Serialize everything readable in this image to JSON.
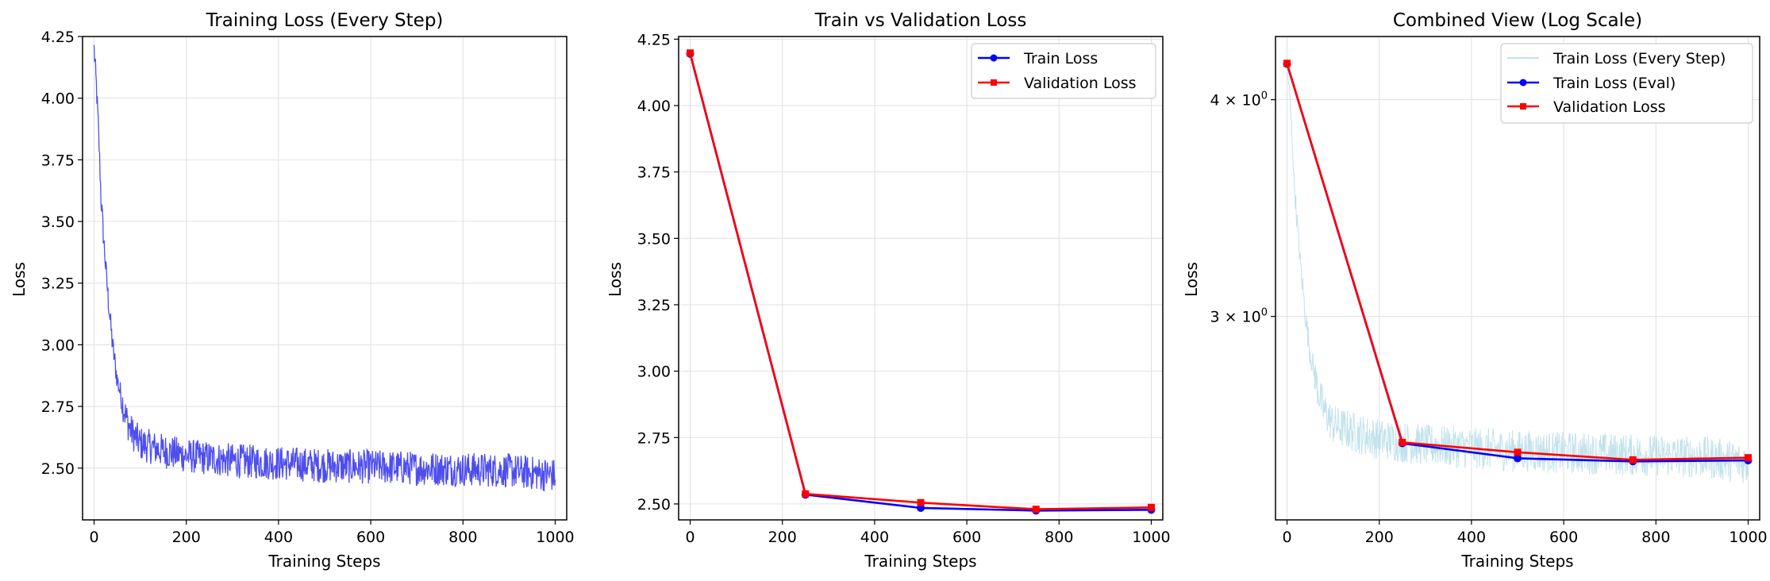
{
  "colors": {
    "step_line": "#4444ee",
    "step_line_light": "#add8e6",
    "train_eval": "#0000ff",
    "validation": "#ff0000",
    "grid": "#e0e0e0"
  },
  "chart_data": [
    {
      "type": "line",
      "title": "Training Loss (Every Step)",
      "xlabel": "Training Steps",
      "ylabel": "Loss",
      "xlim": [
        -25,
        1025
      ],
      "ylim": [
        2.29,
        4.25
      ],
      "xticks": [
        0,
        200,
        400,
        600,
        800,
        1000
      ],
      "yticks": [
        2.5,
        2.75,
        3.0,
        3.25,
        3.5,
        3.75,
        4.0,
        4.25
      ],
      "xtick_labels": [
        "0",
        "200",
        "400",
        "600",
        "800",
        "1000"
      ],
      "ytick_labels": [
        "2.50",
        "2.75",
        "3.00",
        "3.25",
        "3.50",
        "3.75",
        "4.00",
        "4.25"
      ],
      "grid": true,
      "series": [
        {
          "style": "noisy-step",
          "x": [
            0,
            5,
            10,
            15,
            20,
            25,
            30,
            35,
            40,
            45,
            50,
            60,
            70,
            80,
            100,
            150,
            200,
            300,
            400,
            500,
            600,
            700,
            800,
            900,
            1000
          ],
          "values": [
            4.2,
            4.05,
            3.85,
            3.6,
            3.45,
            3.32,
            3.2,
            3.1,
            3.0,
            2.93,
            2.86,
            2.78,
            2.7,
            2.65,
            2.6,
            2.57,
            2.55,
            2.53,
            2.52,
            2.51,
            2.505,
            2.5,
            2.495,
            2.49,
            2.47
          ]
        }
      ]
    },
    {
      "type": "line",
      "title": "Train vs Validation Loss",
      "xlabel": "Training Steps",
      "ylabel": "Loss",
      "xlim": [
        -25,
        1025
      ],
      "ylim": [
        2.44,
        4.26
      ],
      "xticks": [
        0,
        200,
        400,
        600,
        800,
        1000
      ],
      "yticks": [
        2.5,
        2.75,
        3.0,
        3.25,
        3.5,
        3.75,
        4.0,
        4.25
      ],
      "xtick_labels": [
        "0",
        "200",
        "400",
        "600",
        "800",
        "1000"
      ],
      "ytick_labels": [
        "2.50",
        "2.75",
        "3.00",
        "3.25",
        "3.50",
        "3.75",
        "4.00",
        "4.25"
      ],
      "grid": true,
      "legend": "top-right",
      "series": [
        {
          "name": "Train Loss",
          "marker": "circle",
          "x": [
            0,
            250,
            500,
            750,
            1000
          ],
          "values": [
            4.195,
            2.535,
            2.485,
            2.475,
            2.478
          ]
        },
        {
          "name": "Validation Loss",
          "marker": "square",
          "x": [
            0,
            250,
            500,
            750,
            1000
          ],
          "values": [
            4.198,
            2.538,
            2.505,
            2.48,
            2.487
          ]
        }
      ]
    },
    {
      "type": "line",
      "title": "Combined View (Log Scale)",
      "xlabel": "Training Steps",
      "ylabel": "Loss",
      "xscale": "linear",
      "yscale": "log",
      "xlim": [
        -25,
        1025
      ],
      "ylim": [
        2.29,
        4.35
      ],
      "xticks": [
        0,
        200,
        400,
        600,
        800,
        1000
      ],
      "xtick_labels": [
        "0",
        "200",
        "400",
        "600",
        "800",
        "1000"
      ],
      "yticks": [
        3,
        4
      ],
      "ytick_labels": [
        "3 × 10",
        "4 × 10"
      ],
      "ytick_exponent": "0",
      "grid": true,
      "legend": "top-right",
      "series": [
        {
          "name": "Train Loss (Every Step)",
          "style": "noisy-step",
          "x": [
            0,
            5,
            10,
            15,
            20,
            25,
            30,
            35,
            40,
            45,
            50,
            60,
            70,
            80,
            100,
            150,
            200,
            300,
            400,
            500,
            600,
            700,
            800,
            900,
            1000
          ],
          "values": [
            4.2,
            4.05,
            3.85,
            3.6,
            3.45,
            3.32,
            3.2,
            3.1,
            3.0,
            2.93,
            2.86,
            2.78,
            2.7,
            2.65,
            2.6,
            2.57,
            2.55,
            2.53,
            2.52,
            2.51,
            2.505,
            2.5,
            2.495,
            2.49,
            2.47
          ]
        },
        {
          "name": "Train Loss (Eval)",
          "marker": "circle",
          "x": [
            0,
            250,
            500,
            750,
            1000
          ],
          "values": [
            4.195,
            2.535,
            2.485,
            2.475,
            2.478
          ]
        },
        {
          "name": "Validation Loss",
          "marker": "square",
          "x": [
            0,
            250,
            500,
            750,
            1000
          ],
          "values": [
            4.198,
            2.538,
            2.505,
            2.48,
            2.487
          ]
        }
      ]
    }
  ]
}
